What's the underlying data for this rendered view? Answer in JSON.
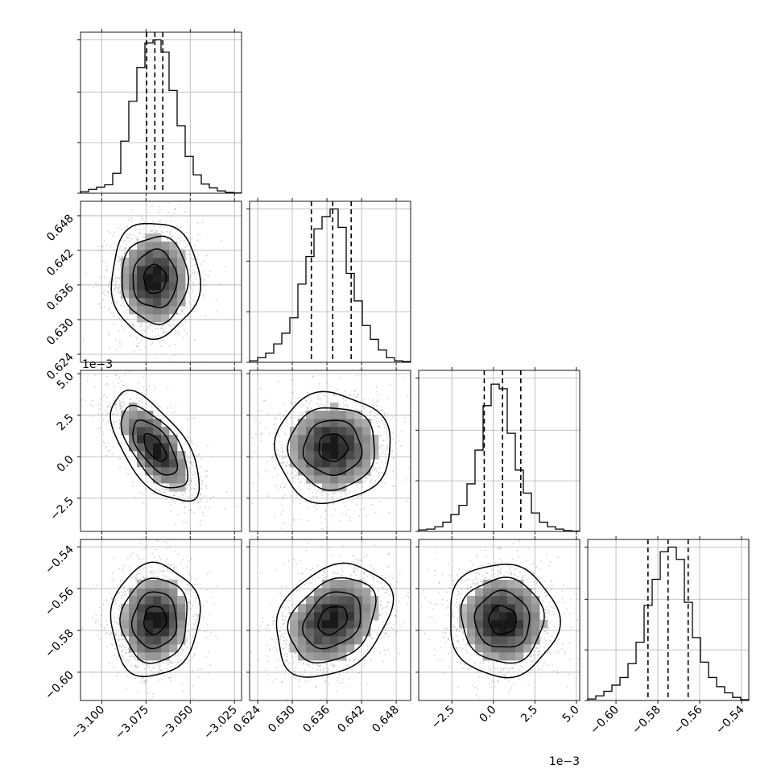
{
  "chart_data": {
    "type": "corner",
    "parameters": [
      {
        "range": [
          -3.112,
          -3.021
        ],
        "ticks": [
          -3.1,
          -3.075,
          -3.05,
          -3.025
        ],
        "tick_labels": [
          "−3.100",
          "−3.075",
          "−3.050",
          "−3.025"
        ],
        "offset_label": "",
        "quantiles": [
          -3.0746,
          -3.07,
          -3.0655
        ],
        "hist_y_ticks": [
          0,
          0.33,
          0.66,
          1.0
        ],
        "hist": [
          0.01,
          0.025,
          0.04,
          0.055,
          0.13,
          0.34,
          0.6,
          0.82,
          0.98,
          1.0,
          0.92,
          0.67,
          0.44,
          0.24,
          0.12,
          0.06,
          0.035,
          0.015,
          0.006,
          0.002
        ]
      },
      {
        "range": [
          0.6226,
          0.6505
        ],
        "ticks": [
          0.624,
          0.63,
          0.636,
          0.642,
          0.648
        ],
        "tick_labels": [
          "0.624",
          "0.630",
          "0.636",
          "0.642",
          "0.648"
        ],
        "offset_label": "",
        "quantiles": [
          0.6333,
          0.637,
          0.6402
        ],
        "hist_y_ticks": [
          0,
          0.33,
          0.66,
          1.0
        ],
        "hist": [
          0.01,
          0.03,
          0.06,
          0.12,
          0.19,
          0.29,
          0.51,
          0.69,
          0.87,
          0.95,
          1.0,
          0.88,
          0.58,
          0.4,
          0.24,
          0.15,
          0.08,
          0.03,
          0.01,
          0.005
        ]
      },
      {
        "range": [
          -4.5,
          5.2
        ],
        "scale_exponent": -3,
        "ticks": [
          -2.5,
          0.0,
          2.5,
          5.0
        ],
        "tick_labels": [
          "−2.5",
          "0.0",
          "2.5",
          "5.0"
        ],
        "offset_label": "1e−3",
        "quantiles": [
          -0.55,
          0.55,
          1.65
        ],
        "hist_y_ticks": [
          0,
          0.33,
          0.66,
          1.0
        ],
        "hist": [
          0.01,
          0.015,
          0.03,
          0.06,
          0.11,
          0.17,
          0.31,
          0.53,
          0.82,
          0.96,
          0.93,
          0.64,
          0.4,
          0.25,
          0.12,
          0.06,
          0.03,
          0.015,
          0.005,
          0.002
        ]
      },
      {
        "range": [
          -0.6135,
          -0.5365
        ],
        "ticks": [
          -0.6,
          -0.58,
          -0.56,
          -0.54
        ],
        "tick_labels": [
          "−0.60",
          "−0.58",
          "−0.56",
          "−0.54"
        ],
        "offset_label": "",
        "quantiles": [
          -0.5847,
          -0.5751,
          -0.5655
        ],
        "hist_y_ticks": [
          0,
          0.33,
          0.66,
          1.0
        ],
        "hist": [
          0.01,
          0.03,
          0.06,
          0.1,
          0.15,
          0.24,
          0.38,
          0.62,
          0.79,
          0.97,
          1.0,
          0.92,
          0.64,
          0.41,
          0.25,
          0.15,
          0.09,
          0.05,
          0.02,
          0.005
        ]
      }
    ],
    "pairs": [
      {
        "row": 1,
        "col": 0,
        "center": [
          -3.07,
          0.637
        ],
        "sd": [
          0.0125,
          0.005
        ],
        "rho": 0.0
      },
      {
        "row": 2,
        "col": 0,
        "center": [
          -3.07,
          0.55
        ],
        "sd": [
          0.0125,
          1.65
        ],
        "rho": -0.62
      },
      {
        "row": 2,
        "col": 1,
        "center": [
          0.637,
          0.55
        ],
        "sd": [
          0.005,
          1.65
        ],
        "rho": 0.0
      },
      {
        "row": 3,
        "col": 0,
        "center": [
          -3.07,
          -0.5751
        ],
        "sd": [
          0.0125,
          0.0135
        ],
        "rho": 0.05
      },
      {
        "row": 3,
        "col": 1,
        "center": [
          0.637,
          -0.5751
        ],
        "sd": [
          0.005,
          0.0135
        ],
        "rho": 0.28
      },
      {
        "row": 3,
        "col": 2,
        "center": [
          0.55,
          -0.5751
        ],
        "sd": [
          1.65,
          0.0135
        ],
        "rho": -0.03
      }
    ],
    "contour_levels_sigma": [
      0.5,
      1.0,
      1.5,
      2.0
    ],
    "grid": true,
    "colors": {
      "axes": "#000000",
      "grid": "#b0b0b0",
      "points": "#9a9a9a",
      "quantile_line": "#000000",
      "density": "#000000"
    }
  }
}
